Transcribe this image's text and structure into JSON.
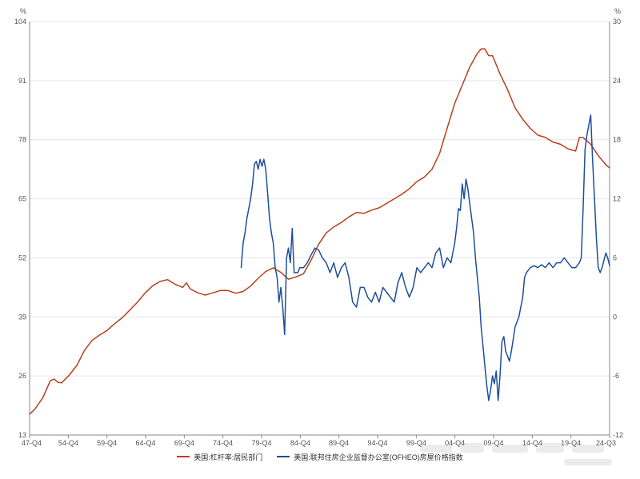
{
  "chart_data": {
    "type": "line",
    "x_tick_labels": [
      "47-Q4",
      "54-Q4",
      "59-Q4",
      "64-Q4",
      "69-Q4",
      "74-Q4",
      "79-Q4",
      "84-Q4",
      "89-Q4",
      "94-Q4",
      "99-Q4",
      "04-Q4",
      "09-Q4",
      "14-Q4",
      "19-Q4",
      "24-Q3"
    ],
    "x_range": [
      1947.75,
      2024.5
    ],
    "y_left": {
      "unit": "%",
      "ylim": [
        13,
        104
      ],
      "ticks": [
        13,
        26,
        39,
        52,
        65,
        78,
        91,
        104
      ]
    },
    "y_right": {
      "unit": "%",
      "ylim": [
        -12,
        30
      ],
      "ticks": [
        -12,
        -6,
        0,
        6,
        12,
        18,
        24,
        30
      ]
    },
    "grid": "horizontal",
    "legend_position": "bottom",
    "series": [
      {
        "name": "美国:杠杆率:居民部门",
        "axis": "left",
        "color": "#B5411E",
        "points": [
          [
            1947.75,
            17.6
          ],
          [
            1948.5,
            18.8
          ],
          [
            1949.5,
            21.2
          ],
          [
            1950.5,
            25.0
          ],
          [
            1951.0,
            25.3
          ],
          [
            1951.5,
            24.6
          ],
          [
            1952.0,
            24.5
          ],
          [
            1953.0,
            26.2
          ],
          [
            1954.0,
            28.3
          ],
          [
            1955.0,
            31.6
          ],
          [
            1956.0,
            33.8
          ],
          [
            1957.0,
            35.0
          ],
          [
            1958.0,
            36.0
          ],
          [
            1959.0,
            37.5
          ],
          [
            1960.0,
            38.8
          ],
          [
            1961.0,
            40.5
          ],
          [
            1962.0,
            42.2
          ],
          [
            1963.0,
            44.2
          ],
          [
            1964.0,
            45.8
          ],
          [
            1965.0,
            46.8
          ],
          [
            1966.0,
            47.2
          ],
          [
            1967.0,
            46.2
          ],
          [
            1968.0,
            45.5
          ],
          [
            1968.5,
            46.5
          ],
          [
            1969.0,
            45.2
          ],
          [
            1970.0,
            44.3
          ],
          [
            1971.0,
            43.8
          ],
          [
            1972.0,
            44.3
          ],
          [
            1973.0,
            44.8
          ],
          [
            1974.0,
            44.8
          ],
          [
            1975.0,
            44.2
          ],
          [
            1976.0,
            44.6
          ],
          [
            1977.0,
            45.8
          ],
          [
            1978.0,
            47.5
          ],
          [
            1979.0,
            49.0
          ],
          [
            1980.0,
            49.8
          ],
          [
            1981.0,
            48.8
          ],
          [
            1982.0,
            47.3
          ],
          [
            1983.0,
            47.8
          ],
          [
            1984.0,
            48.5
          ],
          [
            1985.0,
            51.5
          ],
          [
            1986.0,
            55.0
          ],
          [
            1987.0,
            57.5
          ],
          [
            1988.0,
            58.8
          ],
          [
            1989.0,
            59.8
          ],
          [
            1990.0,
            61.0
          ],
          [
            1991.0,
            62.0
          ],
          [
            1992.0,
            61.8
          ],
          [
            1993.0,
            62.5
          ],
          [
            1994.0,
            63.0
          ],
          [
            1995.0,
            64.0
          ],
          [
            1996.0,
            65.0
          ],
          [
            1997.0,
            66.0
          ],
          [
            1998.0,
            67.2
          ],
          [
            1999.0,
            68.8
          ],
          [
            2000.0,
            69.8
          ],
          [
            2001.0,
            71.5
          ],
          [
            2002.0,
            75.0
          ],
          [
            2003.0,
            80.5
          ],
          [
            2004.0,
            86.0
          ],
          [
            2005.0,
            90.0
          ],
          [
            2006.0,
            94.0
          ],
          [
            2007.0,
            97.0
          ],
          [
            2007.5,
            98.0
          ],
          [
            2008.0,
            98.0
          ],
          [
            2008.5,
            96.5
          ],
          [
            2009.0,
            96.5
          ],
          [
            2010.0,
            92.5
          ],
          [
            2011.0,
            89.0
          ],
          [
            2012.0,
            85.0
          ],
          [
            2013.0,
            82.5
          ],
          [
            2014.0,
            80.5
          ],
          [
            2015.0,
            79.0
          ],
          [
            2016.0,
            78.5
          ],
          [
            2017.0,
            77.5
          ],
          [
            2018.0,
            77.0
          ],
          [
            2019.0,
            76.0
          ],
          [
            2020.0,
            75.5
          ],
          [
            2020.5,
            78.5
          ],
          [
            2021.0,
            78.5
          ],
          [
            2022.0,
            77.0
          ],
          [
            2023.0,
            74.5
          ],
          [
            2024.0,
            72.5
          ],
          [
            2024.5,
            71.8
          ]
        ]
      },
      {
        "name": "美国:联邦住房企业监督办公室(OFHEO)房屋价格指数",
        "axis": "right",
        "color": "#1F4E9C",
        "points": [
          [
            1975.75,
            5.0
          ],
          [
            1976.0,
            7.5
          ],
          [
            1976.25,
            8.5
          ],
          [
            1976.5,
            10.0
          ],
          [
            1977.0,
            12.0
          ],
          [
            1977.25,
            13.5
          ],
          [
            1977.5,
            15.5
          ],
          [
            1977.75,
            15.8
          ],
          [
            1978.0,
            15.0
          ],
          [
            1978.25,
            16.0
          ],
          [
            1978.5,
            15.3
          ],
          [
            1978.75,
            16.0
          ],
          [
            1979.0,
            15.0
          ],
          [
            1979.25,
            12.5
          ],
          [
            1979.5,
            10.0
          ],
          [
            1979.75,
            8.5
          ],
          [
            1980.0,
            7.5
          ],
          [
            1980.25,
            5.0
          ],
          [
            1980.5,
            4.0
          ],
          [
            1980.75,
            1.5
          ],
          [
            1981.0,
            3.0
          ],
          [
            1981.25,
            1.0
          ],
          [
            1981.5,
            -1.8
          ],
          [
            1981.75,
            6.0
          ],
          [
            1982.0,
            7.0
          ],
          [
            1982.25,
            5.5
          ],
          [
            1982.5,
            9.0
          ],
          [
            1982.75,
            4.5
          ],
          [
            1983.0,
            4.5
          ],
          [
            1983.25,
            4.5
          ],
          [
            1983.5,
            5.0
          ],
          [
            1984.0,
            5.0
          ],
          [
            1984.5,
            5.5
          ],
          [
            1985.0,
            6.3
          ],
          [
            1985.5,
            7.0
          ],
          [
            1986.0,
            6.8
          ],
          [
            1986.5,
            6.0
          ],
          [
            1987.0,
            5.5
          ],
          [
            1987.5,
            4.5
          ],
          [
            1988.0,
            5.5
          ],
          [
            1988.5,
            4.0
          ],
          [
            1989.0,
            5.0
          ],
          [
            1989.5,
            5.5
          ],
          [
            1990.0,
            4.0
          ],
          [
            1990.5,
            1.5
          ],
          [
            1991.0,
            1.0
          ],
          [
            1991.5,
            3.0
          ],
          [
            1992.0,
            3.0
          ],
          [
            1992.5,
            2.0
          ],
          [
            1993.0,
            1.5
          ],
          [
            1993.5,
            2.5
          ],
          [
            1994.0,
            1.5
          ],
          [
            1994.5,
            3.0
          ],
          [
            1995.0,
            2.5
          ],
          [
            1995.5,
            2.0
          ],
          [
            1996.0,
            1.5
          ],
          [
            1996.5,
            3.5
          ],
          [
            1997.0,
            4.5
          ],
          [
            1997.5,
            3.0
          ],
          [
            1998.0,
            2.0
          ],
          [
            1998.5,
            3.0
          ],
          [
            1999.0,
            5.0
          ],
          [
            1999.5,
            4.5
          ],
          [
            2000.0,
            5.0
          ],
          [
            2000.5,
            5.5
          ],
          [
            2001.0,
            5.0
          ],
          [
            2001.5,
            6.5
          ],
          [
            2002.0,
            7.0
          ],
          [
            2002.5,
            5.0
          ],
          [
            2003.0,
            6.0
          ],
          [
            2003.5,
            5.5
          ],
          [
            2004.0,
            7.5
          ],
          [
            2004.25,
            9.0
          ],
          [
            2004.5,
            11.0
          ],
          [
            2004.75,
            10.8
          ],
          [
            2005.0,
            13.5
          ],
          [
            2005.25,
            12.0
          ],
          [
            2005.5,
            14.0
          ],
          [
            2005.75,
            13.0
          ],
          [
            2006.0,
            11.5
          ],
          [
            2006.25,
            10.0
          ],
          [
            2006.5,
            8.5
          ],
          [
            2006.75,
            6.0
          ],
          [
            2007.0,
            4.0
          ],
          [
            2007.25,
            2.0
          ],
          [
            2007.5,
            -1.0
          ],
          [
            2007.75,
            -3.0
          ],
          [
            2008.0,
            -5.0
          ],
          [
            2008.25,
            -7.0
          ],
          [
            2008.5,
            -8.5
          ],
          [
            2008.75,
            -7.5
          ],
          [
            2009.0,
            -6.0
          ],
          [
            2009.25,
            -6.8
          ],
          [
            2009.5,
            -5.5
          ],
          [
            2009.75,
            -8.5
          ],
          [
            2010.0,
            -6.0
          ],
          [
            2010.25,
            -2.5
          ],
          [
            2010.5,
            -2.0
          ],
          [
            2010.75,
            -3.5
          ],
          [
            2011.0,
            -4.0
          ],
          [
            2011.25,
            -4.5
          ],
          [
            2011.5,
            -3.5
          ],
          [
            2012.0,
            -1.0
          ],
          [
            2012.5,
            0.0
          ],
          [
            2013.0,
            2.0
          ],
          [
            2013.25,
            4.0
          ],
          [
            2013.5,
            4.5
          ],
          [
            2014.0,
            5.0
          ],
          [
            2014.5,
            5.2
          ],
          [
            2015.0,
            5.0
          ],
          [
            2015.5,
            5.3
          ],
          [
            2016.0,
            5.0
          ],
          [
            2016.5,
            5.5
          ],
          [
            2017.0,
            5.0
          ],
          [
            2017.5,
            5.5
          ],
          [
            2018.0,
            5.5
          ],
          [
            2018.5,
            6.0
          ],
          [
            2019.0,
            5.5
          ],
          [
            2019.5,
            5.0
          ],
          [
            2020.0,
            5.0
          ],
          [
            2020.5,
            5.5
          ],
          [
            2020.75,
            6.0
          ],
          [
            2021.0,
            11.0
          ],
          [
            2021.25,
            17.0
          ],
          [
            2021.5,
            18.5
          ],
          [
            2021.75,
            19.5
          ],
          [
            2022.0,
            20.5
          ],
          [
            2022.25,
            16.0
          ],
          [
            2022.5,
            12.0
          ],
          [
            2022.75,
            8.0
          ],
          [
            2023.0,
            5.0
          ],
          [
            2023.25,
            4.5
          ],
          [
            2023.5,
            5.0
          ],
          [
            2024.0,
            6.5
          ],
          [
            2024.25,
            6.0
          ],
          [
            2024.5,
            5.2
          ]
        ]
      }
    ]
  },
  "legend": {
    "items": [
      {
        "label": "美国:杠杆率:居民部门",
        "color": "#B5411E"
      },
      {
        "label": "美国:联邦住房企业监督办公室(OFHEO)房屋价格指数",
        "color": "#1F4E9C"
      }
    ]
  }
}
